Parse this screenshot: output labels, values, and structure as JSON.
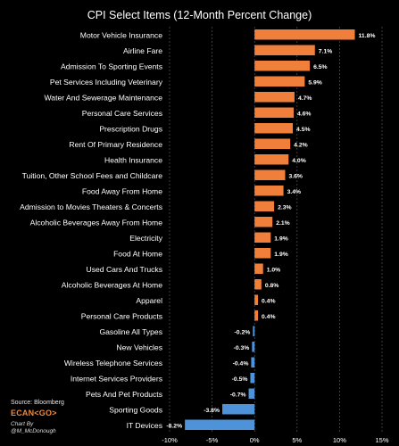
{
  "chart_data": {
    "type": "bar",
    "orientation": "horizontal",
    "title": "CPI Select Items (12-Month Percent Change)",
    "xlabel": "",
    "ylabel": "",
    "xlim": [
      -10,
      15
    ],
    "xticks": [
      -10,
      -5,
      0,
      5,
      10,
      15
    ],
    "xtick_labels": [
      "-10%",
      "-5%",
      "0%",
      "5%",
      "10%",
      "15%"
    ],
    "grid": "vertical dashed",
    "colors": {
      "positive": "#f07f3c",
      "negative": "#4e93d9",
      "background": "#000000"
    },
    "categories": [
      "Motor Vehicle Insurance",
      "Airline Fare",
      "Admission To Sporting Events",
      "Pet Services Including Veterinary",
      "Water And Sewerage Maintenance",
      "Personal Care Services",
      "Prescription Drugs",
      "Rent Of Primary Residence",
      "Health Insurance",
      "Tuition, Other School Fees and Childcare",
      "Food Away From Home",
      "Admission to Movies Theaters & Concerts",
      "Alcoholic Beverages Away From Home",
      "Electricity",
      "Food At Home",
      "Used Cars And Trucks",
      "Alcoholic Beverages At Home",
      "Apparel",
      "Personal Care Products",
      "Gasoline All Types",
      "New Vehicles",
      "Wireless Telephone Services",
      "Internet Services Providers",
      "Pets And Pet Products",
      "Sporting Goods",
      "IT Devices"
    ],
    "values": [
      11.8,
      7.1,
      6.5,
      5.9,
      4.7,
      4.6,
      4.5,
      4.2,
      4.0,
      3.6,
      3.4,
      2.3,
      2.1,
      1.9,
      1.9,
      1.0,
      0.8,
      0.4,
      0.4,
      -0.2,
      -0.3,
      -0.4,
      -0.5,
      -0.7,
      -3.8,
      -8.2
    ],
    "value_labels": [
      "11.8%",
      "7.1%",
      "6.5%",
      "5.9%",
      "4.7%",
      "4.6%",
      "4.5%",
      "4.2%",
      "4.0%",
      "3.6%",
      "3.4%",
      "2.3%",
      "2.1%",
      "1.9%",
      "1.9%",
      "1.0%",
      "0.8%",
      "0.4%",
      "0.4%",
      "-0.2%",
      "-0.3%",
      "-0.4%",
      "-0.5%",
      "-0.7%",
      "-3.8%",
      "-8.2%"
    ]
  },
  "footer": {
    "source": "Source: Bloomberg",
    "brand": "ECAN<GO>",
    "credit_line1": "Chart By",
    "credit_line2": "@M_McDonough"
  }
}
